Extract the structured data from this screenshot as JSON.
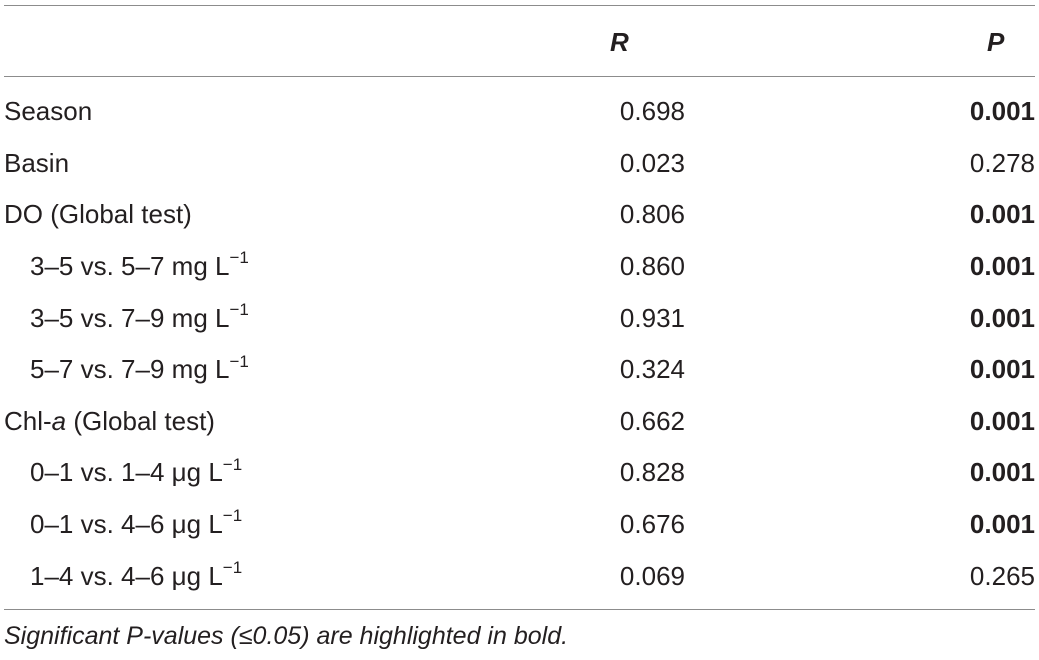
{
  "header": {
    "col_r": "R",
    "col_p": "P"
  },
  "rows": [
    {
      "label_pre": "Season",
      "label_it": "",
      "label_post": "",
      "sup": "",
      "indent": false,
      "r": "0.698",
      "p": "0.001",
      "p_bold": true
    },
    {
      "label_pre": "Basin",
      "label_it": "",
      "label_post": "",
      "sup": "",
      "indent": false,
      "r": "0.023",
      "p": "0.278",
      "p_bold": false
    },
    {
      "label_pre": "DO (Global test)",
      "label_it": "",
      "label_post": "",
      "sup": "",
      "indent": false,
      "r": "0.806",
      "p": "0.001",
      "p_bold": true
    },
    {
      "label_pre": "3–5 vs. 5–7 mg L",
      "label_it": "",
      "label_post": "",
      "sup": "−1",
      "indent": true,
      "r": "0.860",
      "p": "0.001",
      "p_bold": true
    },
    {
      "label_pre": "3–5 vs. 7–9 mg L",
      "label_it": "",
      "label_post": "",
      "sup": "−1",
      "indent": true,
      "r": "0.931",
      "p": "0.001",
      "p_bold": true
    },
    {
      "label_pre": "5–7 vs. 7–9 mg L",
      "label_it": "",
      "label_post": "",
      "sup": "−1",
      "indent": true,
      "r": "0.324",
      "p": "0.001",
      "p_bold": true
    },
    {
      "label_pre": "Chl-",
      "label_it": "a",
      "label_post": " (Global test)",
      "sup": "",
      "indent": false,
      "r": "0.662",
      "p": "0.001",
      "p_bold": true
    },
    {
      "label_pre": "0–1 vs. 1–4 μg L",
      "label_it": "",
      "label_post": "",
      "sup": "−1",
      "indent": true,
      "r": "0.828",
      "p": "0.001",
      "p_bold": true
    },
    {
      "label_pre": "0–1 vs. 4–6 μg L",
      "label_it": "",
      "label_post": "",
      "sup": "−1",
      "indent": true,
      "r": "0.676",
      "p": "0.001",
      "p_bold": true
    },
    {
      "label_pre": "1–4 vs. 4–6 μg L",
      "label_it": "",
      "label_post": "",
      "sup": "−1",
      "indent": true,
      "r": "0.069",
      "p": "0.265",
      "p_bold": false
    }
  ],
  "footnote": "Significant P-values (≤0.05) are highlighted in bold."
}
